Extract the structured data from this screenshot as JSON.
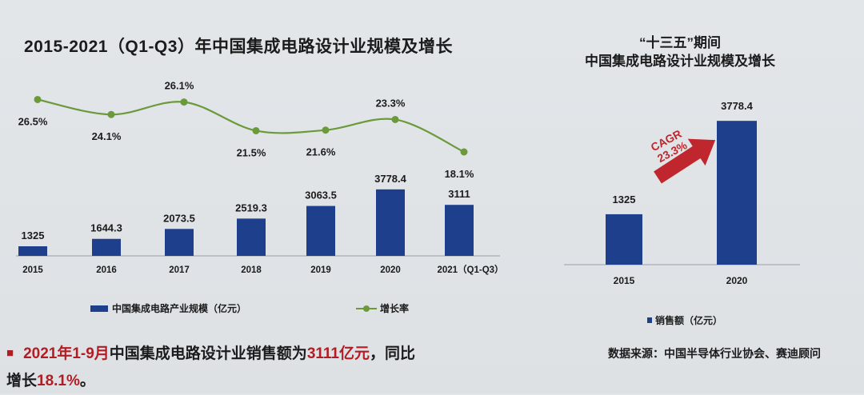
{
  "left_title": "2015-2021（Q1-Q3）年中国集成电路设计业规模及增长",
  "right_title_line1": "“十三五”期间",
  "right_title_line2": "中国集成电路设计业规模及增长",
  "footer": {
    "part1": "2021年1-9月",
    "part2": "中国集成电路设计业销售额为",
    "part3": "3111亿元",
    "part4": "，同比",
    "part5": "增长",
    "part6": "18.1%",
    "part7": "。"
  },
  "source": "数据来源：中国半导体行业协会、赛迪顾问",
  "colors": {
    "bar": "#1e3f8c",
    "line": "#6b9a3a",
    "cagr_arrow": "#c0262d",
    "accent_red": "#b41c24"
  },
  "chart_data": [
    {
      "type": "bar+line",
      "categories": [
        "2015",
        "2016",
        "2017",
        "2018",
        "2019",
        "2020",
        "2021（Q1-Q3）"
      ],
      "series": [
        {
          "name": "中国集成电路产业规模（亿元）",
          "kind": "bar",
          "values": [
            1325,
            1644.3,
            2073.5,
            2519.3,
            3063.5,
            3778.4,
            3111
          ],
          "labels": [
            "1325",
            "1644.3",
            "2073.5",
            "2519.3",
            "3063.5",
            "3778.4",
            "3111"
          ]
        },
        {
          "name": "增长率",
          "kind": "line",
          "values": [
            26.5,
            24.1,
            26.1,
            21.5,
            21.6,
            23.3,
            18.1
          ],
          "labels": [
            "26.5%",
            "24.1%",
            "26.1%",
            "21.5%",
            "21.6%",
            "23.3%",
            "18.1%"
          ]
        }
      ],
      "legend_placement": "bottom"
    },
    {
      "type": "bar",
      "categories": [
        "2015",
        "2020"
      ],
      "series": [
        {
          "name": "销售额（亿元）",
          "values": [
            1325,
            3778.4
          ],
          "labels": [
            "1325",
            "3778.4"
          ]
        }
      ],
      "annotation": {
        "line1": "CAGR",
        "line2": "23.3%"
      },
      "legend_placement": "bottom"
    }
  ]
}
